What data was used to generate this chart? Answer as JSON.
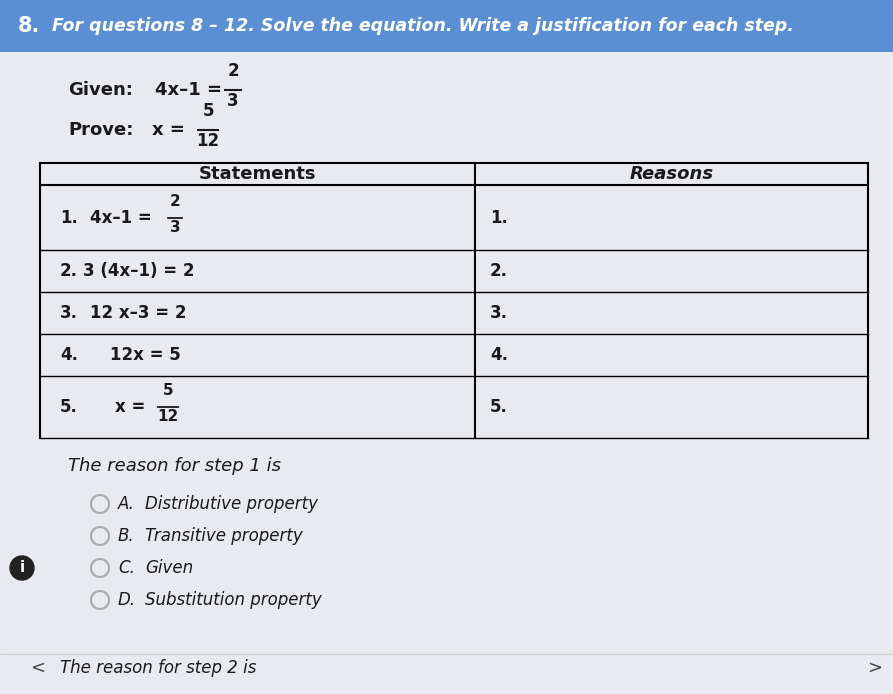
{
  "title_number": "8.",
  "title_text": "For questions 8 – 12. Solve the equation. Write a justification for each step.",
  "col1_header": "Statements",
  "col2_header": "Reasons",
  "bottom_text": "The reason for step 1 is",
  "options": [
    [
      "A.",
      "Distributive property"
    ],
    [
      "B.",
      "Transitive property"
    ],
    [
      "C.",
      "Given"
    ],
    [
      "D.",
      "Substitution property"
    ]
  ],
  "footer_text": "The reason for step 2 is",
  "bg_header": "#5b8fd4",
  "bg_content": "#e8eaf0",
  "dark_text": "#1a1a1a",
  "gray_text": "#444444",
  "header_text_color": "#ffffff",
  "table_line_color": "#000000",
  "option_circle_color": "#aaaaaa"
}
